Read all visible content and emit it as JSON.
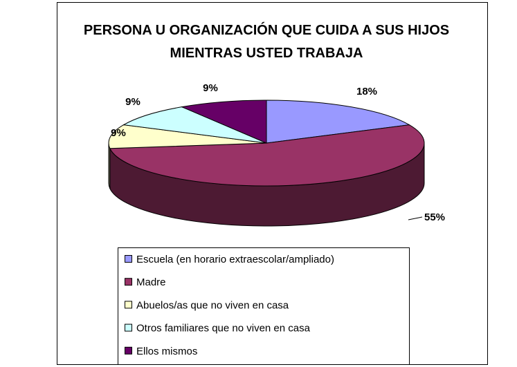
{
  "chart_data": {
    "type": "pie",
    "title": "PERSONA U ORGANIZACIÓN QUE CUIDA A SUS HIJOS MIENTRAS USTED TRABAJA",
    "categories": [
      "Escuela (en horario extraescolar/ampliado)",
      "Madre",
      "Abuelos/as que no viven en casa",
      "Otros familiares que no viven en casa",
      "Ellos mismos"
    ],
    "values": [
      18,
      55,
      9,
      9,
      9
    ],
    "value_labels": [
      "18%",
      "55%",
      "9%",
      "9%",
      "9%"
    ],
    "colors": [
      "#9999ff",
      "#993366",
      "#ffffcc",
      "#ccffff",
      "#660066"
    ],
    "legend": "bottom"
  }
}
